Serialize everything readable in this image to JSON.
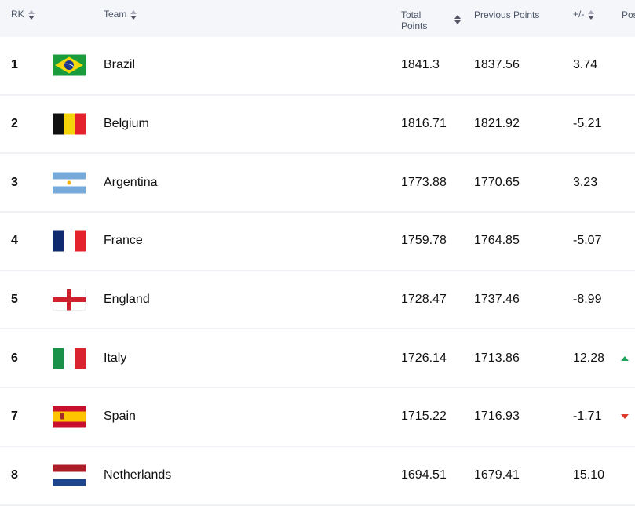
{
  "header": {
    "rk": "RK",
    "team": "Team",
    "total_line1": "Total",
    "total_line2": "Points",
    "previous": "Previous Points",
    "diff": "+/-",
    "pos": "Pos"
  },
  "colors": {
    "up": "#1fa35c",
    "down": "#e0392b"
  },
  "rows": [
    {
      "rk": "1",
      "team": "Brazil",
      "flag": "brazil-flag",
      "total": "1841.3",
      "previous": "1837.56",
      "diff": "3.74",
      "trend": ""
    },
    {
      "rk": "2",
      "team": "Belgium",
      "flag": "belgium-flag",
      "total": "1816.71",
      "previous": "1821.92",
      "diff": "-5.21",
      "trend": ""
    },
    {
      "rk": "3",
      "team": "Argentina",
      "flag": "argentina-flag",
      "total": "1773.88",
      "previous": "1770.65",
      "diff": "3.23",
      "trend": ""
    },
    {
      "rk": "4",
      "team": "France",
      "flag": "france-flag",
      "total": "1759.78",
      "previous": "1764.85",
      "diff": "-5.07",
      "trend": ""
    },
    {
      "rk": "5",
      "team": "England",
      "flag": "england-flag",
      "total": "1728.47",
      "previous": "1737.46",
      "diff": "-8.99",
      "trend": ""
    },
    {
      "rk": "6",
      "team": "Italy",
      "flag": "italy-flag",
      "total": "1726.14",
      "previous": "1713.86",
      "diff": "12.28",
      "trend": "up"
    },
    {
      "rk": "7",
      "team": "Spain",
      "flag": "spain-flag",
      "total": "1715.22",
      "previous": "1716.93",
      "diff": "-1.71",
      "trend": "down"
    },
    {
      "rk": "8",
      "team": "Netherlands",
      "flag": "netherlands-flag",
      "total": "1694.51",
      "previous": "1679.41",
      "diff": "15.10",
      "trend": ""
    }
  ]
}
